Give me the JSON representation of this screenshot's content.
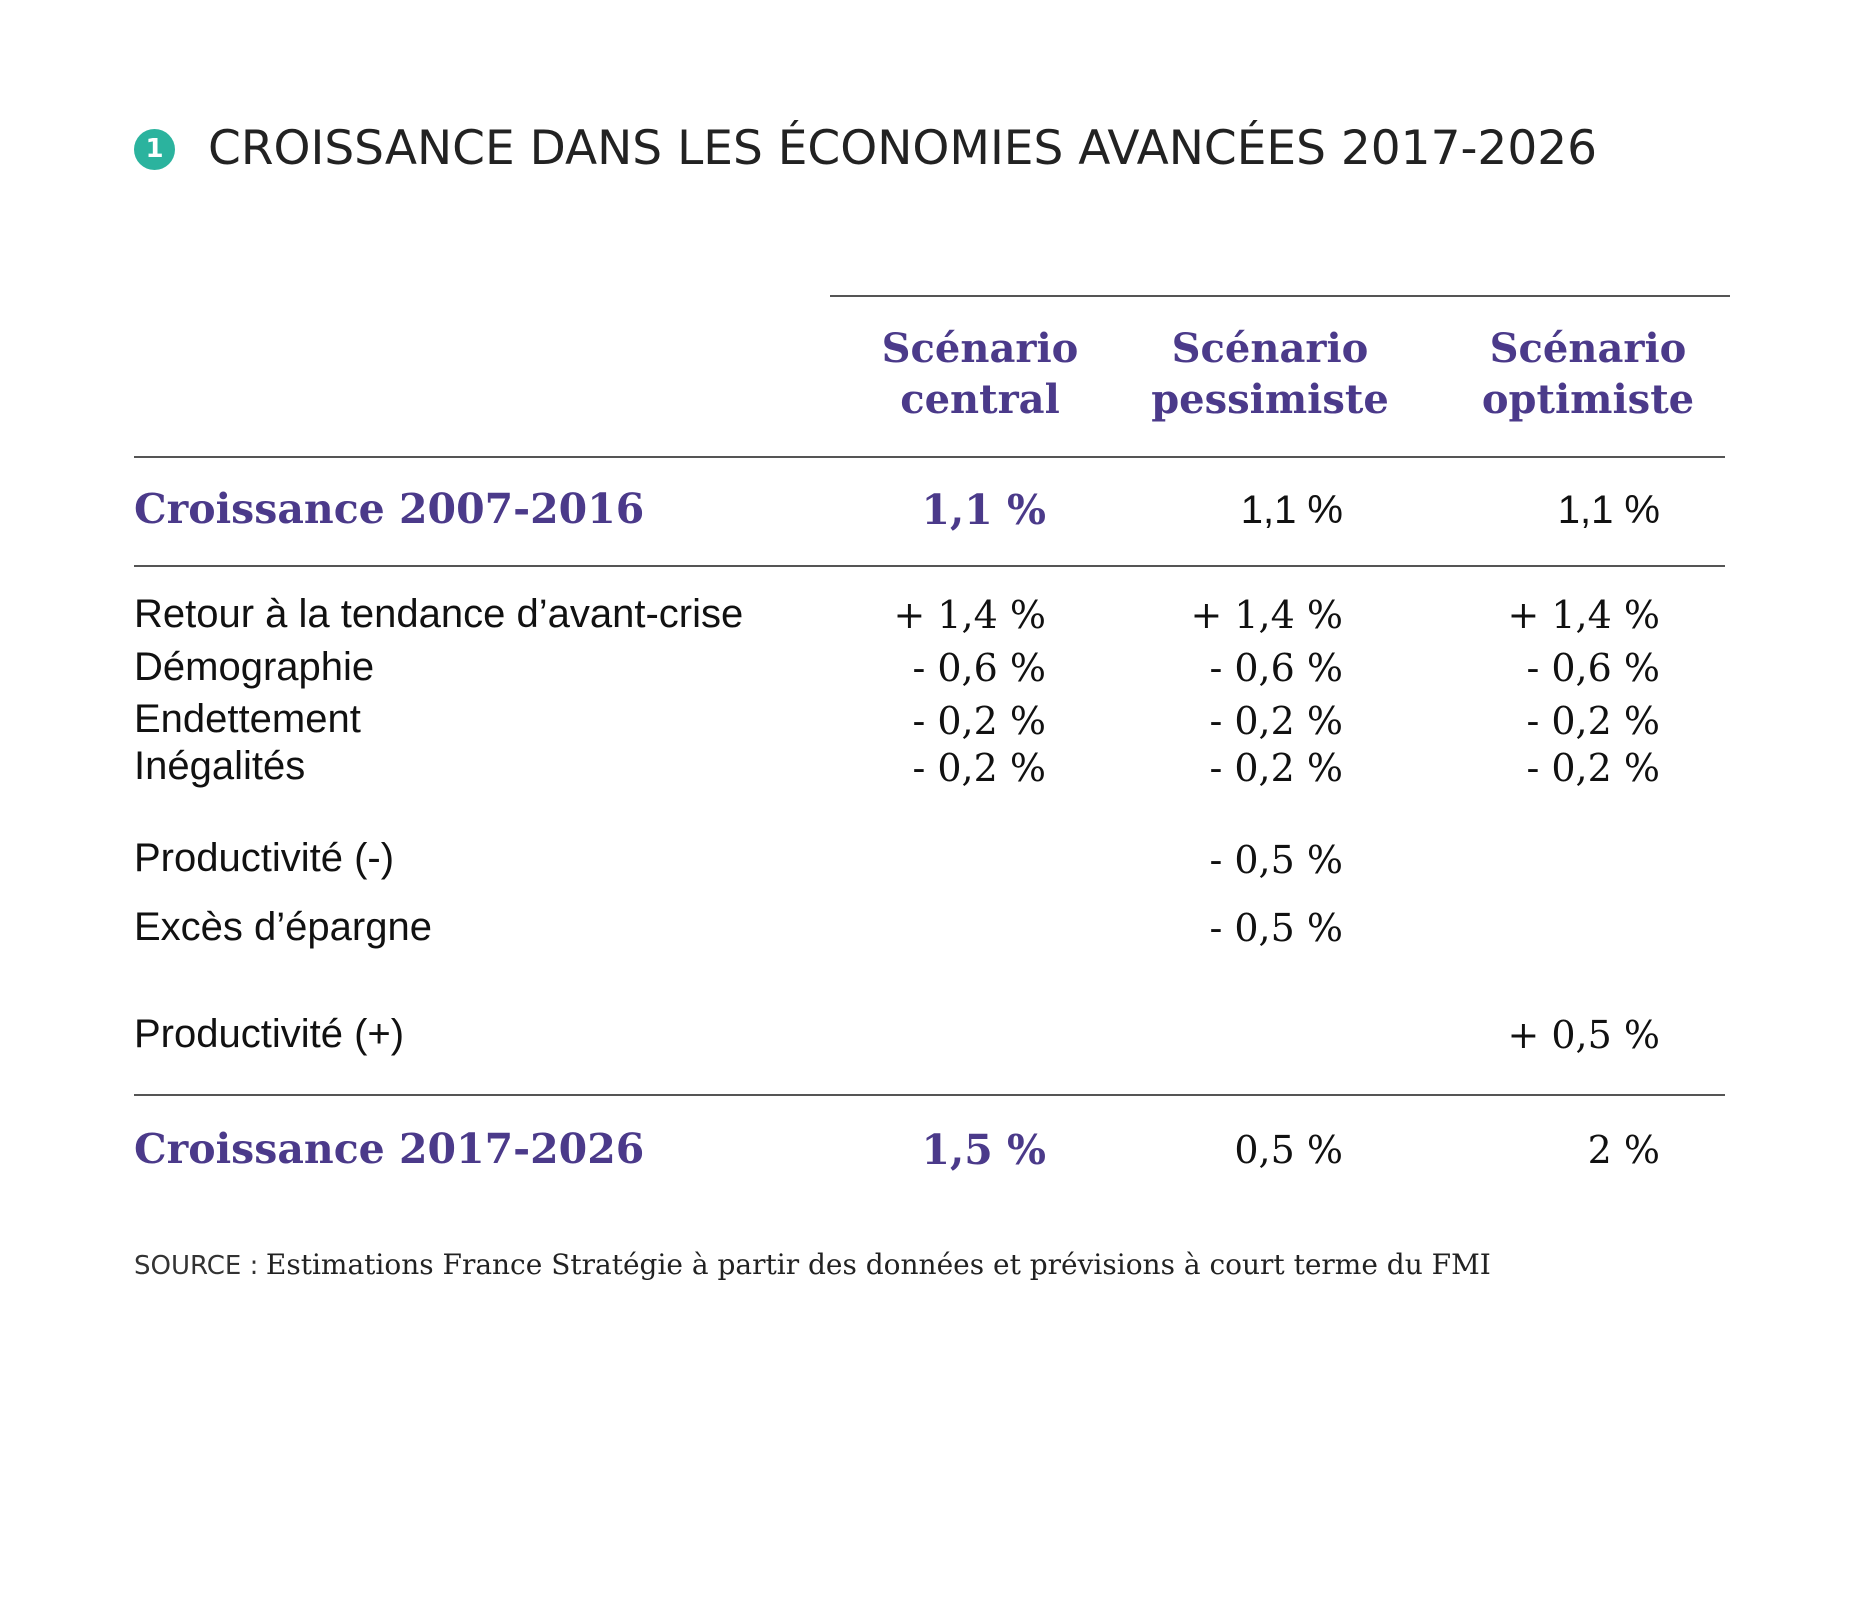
{
  "title": {
    "number": "1",
    "text": "CROISSANCE DANS LES ÉCONOMIES AVANCÉES 2017-2026"
  },
  "columns": [
    {
      "line1": "Scénario",
      "line2": "central"
    },
    {
      "line1": "Scénario",
      "line2": "pessimiste"
    },
    {
      "line1": "Scénario",
      "line2": "optimiste"
    }
  ],
  "rows": {
    "growth_past": {
      "label": "Croissance 2007-2016",
      "values": [
        "1,1 %",
        "1,1 %",
        "1,1 %"
      ]
    },
    "trend": {
      "label": "Retour à la tendance d’avant-crise",
      "values": [
        "+ 1,4 %",
        "+ 1,4 %",
        "+ 1,4 %"
      ]
    },
    "demography": {
      "label": "Démographie",
      "values": [
        "- 0,6 %",
        "- 0,6 %",
        "- 0,6 %"
      ]
    },
    "debt": {
      "label": "Endettement",
      "values": [
        "- 0,2 %",
        "- 0,2 %",
        "- 0,2 %"
      ]
    },
    "inequality": {
      "label": "Inégalités",
      "values": [
        "- 0,2 %",
        "- 0,2 %",
        "- 0,2 %"
      ]
    },
    "productivity_minus": {
      "label": "Productivité (-)",
      "values": [
        "",
        "- 0,5 %",
        ""
      ]
    },
    "excess_savings": {
      "label": "Excès d’épargne",
      "values": [
        "",
        "- 0,5 %",
        ""
      ]
    },
    "productivity_plus": {
      "label": "Productivité (+)",
      "values": [
        "",
        "",
        "+ 0,5 %"
      ]
    },
    "growth_future": {
      "label": "Croissance 2017-2026",
      "values": [
        "1,5 %",
        "0,5 %",
        "2 %"
      ]
    }
  },
  "source": {
    "label": "SOURCE :",
    "text": "Estimations France Stratégie à partir des données et prévisions à court terme du FMI"
  },
  "colors": {
    "accent": "#4b3a8a",
    "badge": "#2bb39e",
    "rule": "#555555"
  }
}
